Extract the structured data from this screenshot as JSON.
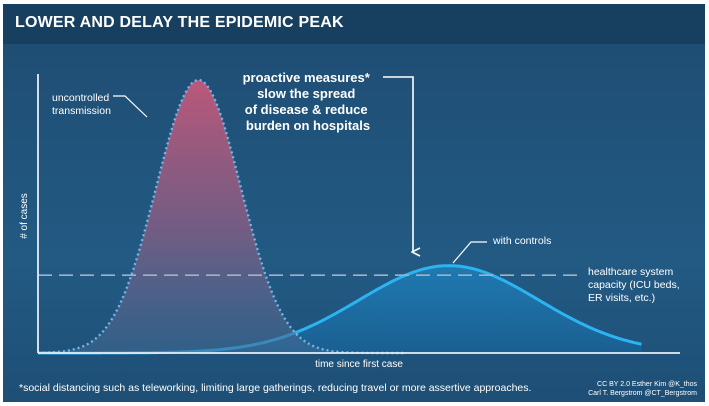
{
  "chart_data": {
    "type": "area",
    "title": "LOWER AND DELAY THE EPIDEMIC PEAK",
    "xlabel": "time since first case",
    "ylabel": "# of cases",
    "xlim": [
      0,
      100
    ],
    "ylim": [
      0,
      100
    ],
    "series": [
      {
        "name": "uncontrolled transmission",
        "peak_x": 25,
        "peak_y": 100,
        "spread": 6.6,
        "color": "#c05a78"
      },
      {
        "name": "with controls",
        "peak_x": 64,
        "peak_y": 32,
        "spread": 14,
        "color": "#2aa8e8"
      }
    ],
    "threshold": {
      "label": "healthcare system capacity (ICU beds, ER visits, etc.)",
      "label_lines": [
        "healthcare system",
        "capacity (ICU beds,",
        "ER visits, etc.)"
      ],
      "y": 28.5
    },
    "annotation": {
      "text": "proactive measures* slow the spread of disease & reduce burden on hospitals",
      "lines": [
        "proactive measures*",
        "slow the spread",
        "of disease & reduce",
        "burden on hospitals"
      ]
    },
    "series_labels": {
      "uncontrolled": [
        "uncontrolled",
        "transmission"
      ],
      "controls": "with controls"
    }
  },
  "footer": {
    "footnote": "*social distancing such as teleworking, limiting large gatherings, reducing travel or more assertive approaches.",
    "credits_line1": "CC BY 2.0   Esther Kim   @K_thos",
    "credits_line2": "Carl T. Bergstrom   @CT_Bergstrom"
  }
}
